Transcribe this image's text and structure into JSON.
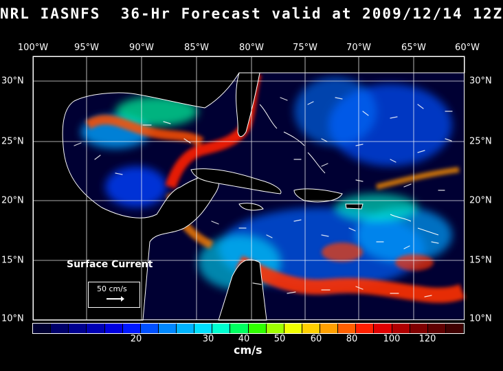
{
  "title": "NRL IASNFS  36-Hr Forecast valid at 2009/12/14 12Z",
  "longitudes": [
    "100°W",
    "95°W",
    "90°W",
    "85°W",
    "80°W",
    "75°W",
    "70°W",
    "65°W",
    "60°W"
  ],
  "latitudes": [
    "30°N",
    "25°N",
    "20°N",
    "15°N",
    "10°N"
  ],
  "map_label": "Surface Current",
  "reference_vector": "50 cm/s",
  "colorbar": {
    "colors": [
      "#000033",
      "#00006b",
      "#000090",
      "#0000b5",
      "#0000e0",
      "#0018ff",
      "#0050ff",
      "#0088ff",
      "#00b4ff",
      "#00e0ff",
      "#00ffd0",
      "#00ff60",
      "#30ff00",
      "#a0ff00",
      "#f0ff00",
      "#ffd000",
      "#ffa000",
      "#ff6000",
      "#ff2000",
      "#e00000",
      "#b00000",
      "#800000",
      "#600000",
      "#400000"
    ],
    "tick_labels": [
      "20",
      "30",
      "40",
      "50",
      "60",
      "80",
      "100",
      "120"
    ],
    "unit": "cm/s"
  },
  "colors": {
    "ocean_bg": "#000033",
    "land": "#000000",
    "coast": "#ffffff"
  }
}
